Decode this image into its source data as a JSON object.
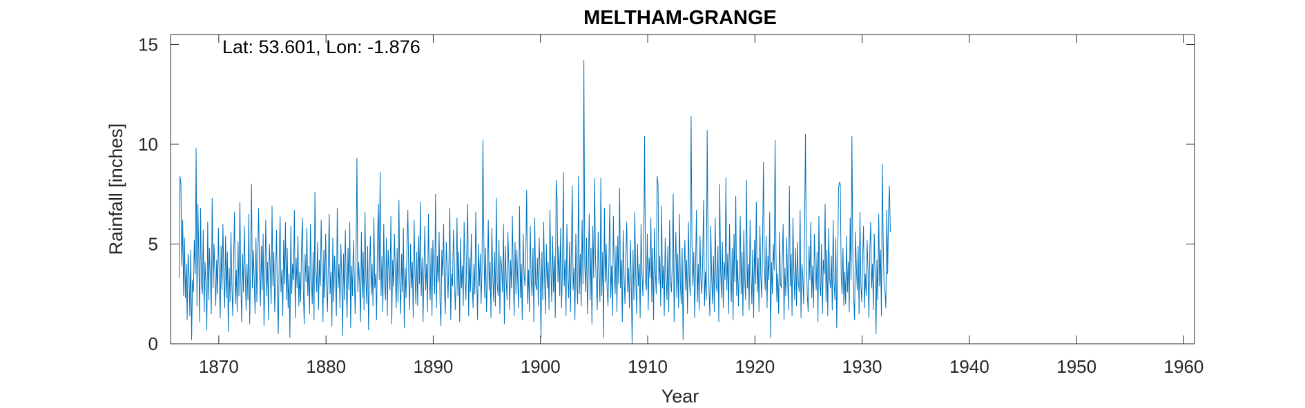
{
  "chart_data": {
    "type": "line",
    "title": "MELTHAM-GRANGE",
    "annotation": "Lat: 53.601, Lon: -1.876",
    "xlabel": "Year",
    "ylabel": "Rainfall [inches]",
    "xlim": [
      1865.5,
      1961.0
    ],
    "ylim": [
      0,
      15.5
    ],
    "xticks": [
      1870,
      1880,
      1890,
      1900,
      1910,
      1920,
      1930,
      1940,
      1950,
      1960
    ],
    "xtick_labels": [
      "1870",
      "1880",
      "1890",
      "1900",
      "1910",
      "1920",
      "1930",
      "1940",
      "1950",
      "1960"
    ],
    "yticks": [
      0,
      5,
      10,
      15
    ],
    "ytick_labels": [
      "0",
      "5",
      "10",
      "15"
    ],
    "grid": false,
    "series": [
      {
        "color": "#0072BD",
        "x_start": 1866.3,
        "x_step": 0.08333,
        "values": [
          3.3,
          8.4,
          8.0,
          3.9,
          6.2,
          2.4,
          5.3,
          2.3,
          4.0,
          1.2,
          4.5,
          3.6,
          1.4,
          4.7,
          0.2,
          3.2,
          2.6,
          5.2,
          3.5,
          9.8,
          1.9,
          7.0,
          4.4,
          1.1,
          6.8,
          3.0,
          2.5,
          5.7,
          1.6,
          4.1,
          2.9,
          0.7,
          6.1,
          2.2,
          4.8,
          3.3,
          1.5,
          7.3,
          2.8,
          5.0,
          3.6,
          1.9,
          4.2,
          2.5,
          5.8,
          3.1,
          1.3,
          4.9,
          2.7,
          6.0,
          3.4,
          1.8,
          5.4,
          2.3,
          4.6,
          0.6,
          3.8,
          2.1,
          5.6,
          3.0,
          1.4,
          4.3,
          6.6,
          2.0,
          3.7,
          1.6,
          5.1,
          2.4,
          7.1,
          3.2,
          1.1,
          4.5,
          2.6,
          5.9,
          3.5,
          1.7,
          4.0,
          2.2,
          6.5,
          1.0,
          3.9,
          8.0,
          2.8,
          4.7,
          3.3,
          1.5,
          5.3,
          2.1,
          4.4,
          6.8,
          3.6,
          1.9,
          4.9,
          2.7,
          5.5,
          0.9,
          3.1,
          6.2,
          2.4,
          4.1,
          1.2,
          5.0,
          3.8,
          2.0,
          6.9,
          2.9,
          4.6,
          1.6,
          3.4,
          5.7,
          2.3,
          0.5,
          4.2,
          6.4,
          2.6,
          3.7,
          1.4,
          5.2,
          3.0,
          6.1,
          2.2,
          4.8,
          1.8,
          3.5,
          0.3,
          5.9,
          2.5,
          4.0,
          3.2,
          6.7,
          1.3,
          4.3,
          2.8,
          5.4,
          1.9,
          3.6,
          2.1,
          4.9,
          6.3,
          2.7,
          1.0,
          4.5,
          3.1,
          5.8,
          2.4,
          3.9,
          1.5,
          6.0,
          3.3,
          2.0,
          4.6,
          1.2,
          7.6,
          3.8,
          2.6,
          5.1,
          1.7,
          4.2,
          2.9,
          6.2,
          3.5,
          1.1,
          4.7,
          2.3,
          5.5,
          3.0,
          1.6,
          4.1,
          6.5,
          2.5,
          3.6,
          0.9,
          5.3,
          2.1,
          4.4,
          3.2,
          1.4,
          6.8,
          2.8,
          4.0,
          1.8,
          5.0,
          3.4,
          0.4,
          4.5,
          2.2,
          5.7,
          3.1,
          1.3,
          4.8,
          2.7,
          6.1,
          0.8,
          3.9,
          2.4,
          5.2,
          3.5,
          1.5,
          4.3,
          9.3,
          2.6,
          4.1,
          3.0,
          1.1,
          5.6,
          2.3,
          4.6,
          1.7,
          6.6,
          3.3,
          2.0,
          4.9,
          0.7,
          3.7,
          5.4,
          2.5,
          4.0,
          1.9,
          6.3,
          2.8,
          3.5,
          1.2,
          5.1,
          7.0,
          3.2,
          8.6,
          2.4,
          4.4,
          1.6,
          6.0,
          3.0,
          2.2,
          5.3,
          1.4,
          4.7,
          3.6,
          2.7,
          6.4,
          1.0,
          4.2,
          2.9,
          5.5,
          3.4,
          1.8,
          4.8,
          2.1,
          7.2,
          3.1,
          1.5,
          4.5,
          2.6,
          5.8,
          0.8,
          3.8,
          2.3,
          4.9,
          6.7,
          3.3,
          1.7,
          5.0,
          2.8,
          4.1,
          1.3,
          6.2,
          3.5,
          2.0,
          4.6,
          1.9,
          5.4,
          3.0,
          7.1,
          2.4,
          4.3,
          1.1,
          3.7,
          5.9,
          2.7,
          4.0,
          1.6,
          6.5,
          3.2,
          2.2,
          4.8,
          1.4,
          5.2,
          3.6,
          2.5,
          7.5,
          1.8,
          4.4,
          3.1,
          5.6,
          2.1,
          0.9,
          4.7,
          3.4,
          6.0,
          2.6,
          1.5,
          5.1,
          3.8,
          2.3,
          4.2,
          6.8,
          1.2,
          3.5,
          2.9,
          5.7,
          4.1,
          1.7,
          3.0,
          6.3,
          2.4,
          4.6,
          1.1,
          5.3,
          2.8,
          3.9,
          1.9,
          6.1,
          3.3,
          2.2,
          4.9,
          7.0,
          1.4,
          4.3,
          2.6,
          5.5,
          3.1,
          1.8,
          4.0,
          2.5,
          6.6,
          3.6,
          1.2,
          5.0,
          2.9,
          4.5,
          2.0,
          3.7,
          10.2,
          5.4,
          2.3,
          4.8,
          1.6,
          3.2,
          6.2,
          2.7,
          4.1,
          1.3,
          5.8,
          3.5,
          2.1,
          4.6,
          1.9,
          7.3,
          3.0,
          2.4,
          5.2,
          1.5,
          4.4,
          3.8,
          2.6,
          6.0,
          1.0,
          4.9,
          3.3,
          2.2,
          5.6,
          3.9,
          1.7,
          4.2,
          2.8,
          6.4,
          3.4,
          1.4,
          5.1,
          2.5,
          4.7,
          3.1,
          1.8,
          6.9,
          2.3,
          4.0,
          1.2,
          5.5,
          3.6,
          2.9,
          4.5,
          7.7,
          2.0,
          3.7,
          1.6,
          5.9,
          3.2,
          2.4,
          4.8,
          1.1,
          6.3,
          3.0,
          2.7,
          4.3,
          1.9,
          5.3,
          3.5,
          0.3,
          4.6,
          2.2,
          6.1,
          3.3,
          1.5,
          5.0,
          2.8,
          4.1,
          1.7,
          6.7,
          3.9,
          2.1,
          5.4,
          2.6,
          4.4,
          1.3,
          8.2,
          7.3,
          3.1,
          4.9,
          2.4,
          5.8,
          1.8,
          3.6,
          8.6,
          2.9,
          4.2,
          1.4,
          6.0,
          3.4,
          2.3,
          5.1,
          1.6,
          4.7,
          7.9,
          2.7,
          3.8,
          1.2,
          5.5,
          3.2,
          2.0,
          8.4,
          2.5,
          4.5,
          1.9,
          6.2,
          3.0,
          14.2,
          4.0,
          2.6,
          5.3,
          1.5,
          3.7,
          6.5,
          2.2,
          4.8,
          1.0,
          5.9,
          3.3,
          8.3,
          4.3,
          2.9,
          1.7,
          5.6,
          3.5,
          2.1,
          8.3,
          2.4,
          4.6,
          0.3,
          6.8,
          3.1,
          5.0,
          2.7,
          1.9,
          4.1,
          7.0,
          2.3,
          3.9,
          1.4,
          6.4,
          3.6,
          2.5,
          4.9,
          1.6,
          5.4,
          3.0,
          7.8,
          2.8,
          4.2,
          1.1,
          5.7,
          3.4,
          2.0,
          4.5,
          6.1,
          2.6,
          3.8,
          1.8,
          5.2,
          3.2,
          0.0,
          4.7,
          2.2,
          6.6,
          3.5,
          1.5,
          5.0,
          2.9,
          4.0,
          1.3,
          6.0,
          3.7,
          2.4,
          4.6,
          10.4,
          3.1,
          2.7,
          5.5,
          1.7,
          4.3,
          3.3,
          6.3,
          2.1,
          4.8,
          1.2,
          5.8,
          3.6,
          2.5,
          8.4,
          8.0,
          3.0,
          4.4,
          1.9,
          6.9,
          2.8,
          3.9,
          1.4,
          5.3,
          3.4,
          2.2,
          4.9,
          1.6,
          6.2,
          3.2,
          2.6,
          4.1,
          7.5,
          1.1,
          3.7,
          5.6,
          2.3,
          4.5,
          1.8,
          6.5,
          3.0,
          2.0,
          4.8,
          0.2,
          3.5,
          5.2,
          2.7,
          4.2,
          1.5,
          6.1,
          3.3,
          2.4,
          11.4,
          5.0,
          2.9,
          4.6,
          1.3,
          3.8,
          6.7,
          2.1,
          4.0,
          1.7,
          5.4,
          3.1,
          2.5,
          4.3,
          7.2,
          1.9,
          3.6,
          2.2,
          10.7,
          4.7,
          2.8,
          1.4,
          5.9,
          3.4,
          2.0,
          4.4,
          1.6,
          6.3,
          3.0,
          2.6,
          4.9,
          1.1,
          8.0,
          3.7,
          2.3,
          5.1,
          1.8,
          4.1,
          3.2,
          8.3,
          2.7,
          4.5,
          1.5,
          6.0,
          3.5,
          2.1,
          4.8,
          1.2,
          5.5,
          3.1,
          7.4,
          2.4,
          4.2,
          1.9,
          3.8,
          6.4,
          2.5,
          4.6,
          1.4,
          5.7,
          3.3,
          2.2,
          8.2,
          2.8,
          4.0,
          1.7,
          6.2,
          3.6,
          2.0,
          4.7,
          1.3,
          5.2,
          3.0,
          7.1,
          2.6,
          4.3,
          1.6,
          5.9,
          3.4,
          2.3,
          4.9,
          9.1,
          3.9,
          2.7,
          5.4,
          1.8,
          4.4,
          3.2,
          6.6,
          0.3,
          4.1,
          2.5,
          5.0,
          3.7,
          10.2,
          4.6,
          2.1,
          3.5,
          1.5,
          5.6,
          3.0,
          2.8,
          4.2,
          6.0,
          1.2,
          3.8,
          2.4,
          5.3,
          3.3,
          1.7,
          7.9,
          2.9,
          4.5,
          1.4,
          6.3,
          3.6,
          2.2,
          4.8,
          1.9,
          5.1,
          3.1,
          2.6,
          6.7,
          1.3,
          4.0,
          3.4,
          2.0,
          5.7,
          10.5,
          4.3,
          2.5,
          1.6,
          4.9,
          3.2,
          6.1,
          2.3,
          3.9,
          1.8,
          5.5,
          3.7,
          2.7,
          4.6,
          1.1,
          6.4,
          3.0,
          2.4,
          5.0,
          1.5,
          4.2,
          3.5,
          7.0,
          2.1,
          4.7,
          1.4,
          5.8,
          3.3,
          2.8,
          4.4,
          1.7,
          6.2,
          3.1,
          2.2,
          5.3,
          0.8,
          4.0,
          7.8,
          8.1,
          8.0,
          3.4,
          2.5,
          4.8,
          1.9,
          3.6,
          2.0,
          5.4,
          2.6,
          4.1,
          1.6,
          6.3,
          3.2,
          10.4,
          4.5,
          2.3,
          1.2,
          5.6,
          3.8,
          2.7,
          4.9,
          1.5,
          6.6,
          3.0,
          2.1,
          4.3,
          5.9,
          1.8,
          3.5,
          2.4,
          5.2,
          3.7,
          1.3,
          4.6,
          6.1,
          2.8,
          4.0,
          1.7,
          5.5,
          3.3,
          0.5,
          4.2,
          2.2,
          6.5,
          2.9,
          4.7,
          1.4,
          9.0,
          5.1,
          3.0,
          2.6,
          1.8,
          6.7,
          3.5,
          6.6,
          7.9,
          5.6
        ]
      }
    ]
  }
}
